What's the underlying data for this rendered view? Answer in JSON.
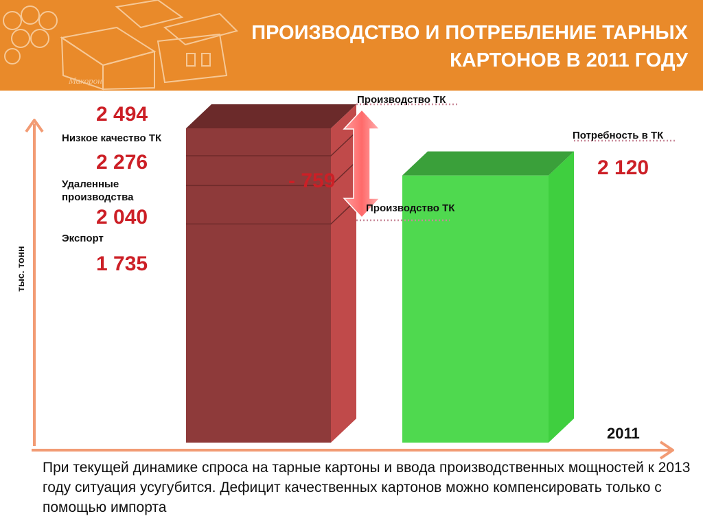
{
  "header": {
    "title_line1": "ПРОИЗВОДСТВО И ПОТРЕБЛЕНИЕ ТАРНЫХ",
    "title_line2": "КАРТОНОВ В 2011 ГОДУ",
    "logo_text": "Макорон",
    "background_color": "#e98a2a"
  },
  "chart_data": {
    "type": "bar",
    "ylabel": "тыс. тонн",
    "xlabel": "2011",
    "production_bar": {
      "color": "#8e3a3a",
      "segments": [
        {
          "label": "",
          "value": 1735
        },
        {
          "label": "Экспорт",
          "value": 2040
        },
        {
          "label": "Удаленные производства",
          "value": 2276
        },
        {
          "label": "Низкое качество ТК",
          "value": 2494
        }
      ]
    },
    "demand_bar": {
      "label": "Потребность в ТК",
      "value": 2120,
      "color": "#4fd94f"
    },
    "labels": {
      "v2494": "2 494",
      "v2276": "2 276",
      "v2040": "2 040",
      "v1735": "1 735",
      "v2120": "2 120",
      "low_quality": "Низкое качество ТК",
      "remote_prod": "Удаленные производства",
      "export": "Экспорт",
      "production_top": "Производство ТК",
      "production_mid": "Производство ТК",
      "demand": "Потребность в ТК",
      "difference": "- 759"
    }
  },
  "footer": {
    "text": "При текущей динамике спроса на тарные картоны и ввода производственных мощностей к 2013 году ситуация усугубится. Дефицит качественных картонов можно компенсировать только с помощью импорта"
  }
}
